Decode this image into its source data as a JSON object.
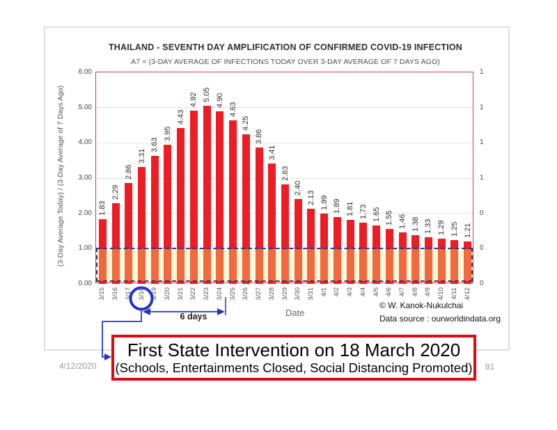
{
  "slide": {
    "footer_date": "4/12/2020",
    "page_number": "81"
  },
  "chart": {
    "title": "THAILAND - SEVENTH DAY AMPLIFICATION OF CONFIRMED COVID-19 INFECTION",
    "subtitle": "A7 = (3-DAY AVERAGE OF INFECTIONS TODAY OVER 3-DAY AVERAGE OF 7 DAYS AGO)",
    "ylabel": "(3-Day Average Today) / (3-Day Average of 7 Days Ago)",
    "xlabel": "Date",
    "credit_line1": "© W. Kanok-Nukulchai",
    "credit_line2": "Data source : ourworldindata.org"
  },
  "chart_data": {
    "type": "bar",
    "title": "THAILAND - SEVENTH DAY AMPLIFICATION OF CONFIRMED COVID-19 INFECTION",
    "subtitle": "A7 = (3-DAY AVERAGE OF INFECTIONS TODAY OVER 3-DAY AVERAGE OF 7 DAYS AGO)",
    "xlabel": "Date",
    "ylabel": "(3-Day Average Today) / (3-Day Average of 7 Days Ago)",
    "categories": [
      "3/15",
      "3/16",
      "3/17",
      "3/18",
      "3/19",
      "3/20",
      "3/21",
      "3/22",
      "3/23",
      "3/24",
      "3/25",
      "3/26",
      "3/27",
      "3/28",
      "3/29",
      "3/30",
      "3/31",
      "4/1",
      "4/2",
      "4/3",
      "4/4",
      "4/5",
      "4/6",
      "4/7",
      "4/8",
      "4/9",
      "4/10",
      "4/11",
      "4/12"
    ],
    "values": [
      1.83,
      2.29,
      2.86,
      3.31,
      3.63,
      3.95,
      4.43,
      4.92,
      5.05,
      4.9,
      4.63,
      4.25,
      3.86,
      3.41,
      2.83,
      2.4,
      2.13,
      1.99,
      1.89,
      1.81,
      1.73,
      1.65,
      1.55,
      1.46,
      1.38,
      1.33,
      1.29,
      1.25,
      1.21
    ],
    "ylim": [
      0,
      6
    ],
    "left_axis_ticks": [
      "6.00",
      "5.00",
      "4.00",
      "3.00",
      "2.00",
      "1.00",
      "0.00"
    ],
    "right_axis_ticks": [
      "1",
      "1",
      "1",
      "1",
      "0",
      "0",
      "0"
    ],
    "baseline_value": 1.0,
    "grid": "horizontal",
    "legend": "none",
    "highlighted_category": "3/18",
    "colors": {
      "bar_above_baseline": "#ee1c24",
      "bar_below_baseline": "#f2683f",
      "baseline_band_fill": "#fdf8d8",
      "baseline_band_border": "#1e3c8c",
      "plot_border": "#c84040",
      "annotation_blue": "#2433c0"
    }
  },
  "annotations": {
    "six_days_label": "6 days",
    "callout_title": "First State Intervention on 18 March 2020",
    "callout_subtitle": "(Schools, Entertainments Closed, Social Distancing Promoted)"
  }
}
